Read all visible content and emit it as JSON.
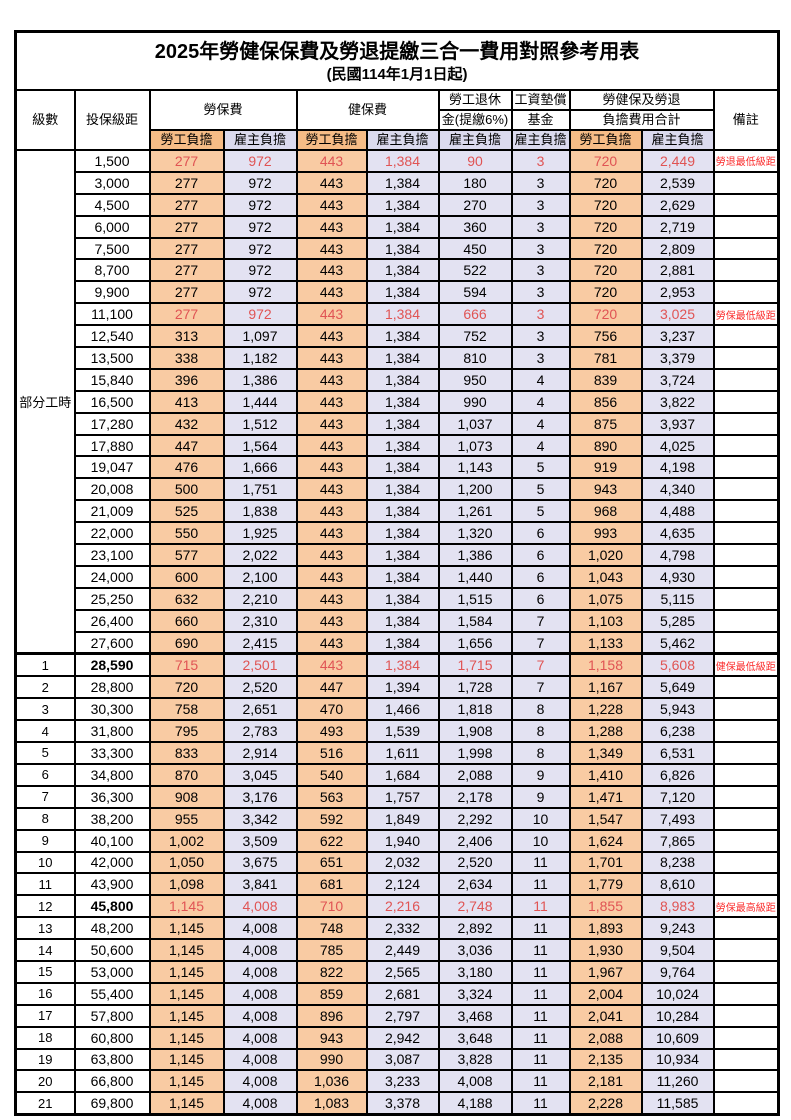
{
  "title": "2025年勞健保保費及勞退提繳三合一費用對照參考用表",
  "subtitle": "(民國114年1月1日起)",
  "colors": {
    "employee_bg": "#F9CBA3",
    "employer_bg": "#E3E2F2",
    "employee_header_bg": "#F6BC86",
    "employer_header_bg": "#DBDAEE",
    "highlight_value_red": "#E05454",
    "remark_red": "#FB2B2B",
    "grid": "#000000"
  },
  "header": {
    "level": "級數",
    "bracket": "投保級距",
    "labor_insurance": "勞保費",
    "health_insurance": "健保費",
    "pension_line1": "勞工退休",
    "pension_line2": "金(提繳6%)",
    "wage_fund_line1": "工資墊償",
    "wage_fund_line2": "基金",
    "total_line1": "勞健保及勞退",
    "total_line2": "負擔費用合計",
    "remark": "備註",
    "employee_share": "勞工負擔",
    "employer_share": "雇主負擔"
  },
  "part_time_label": "部分工時",
  "part_time_rowspan": 23,
  "rows": [
    {
      "level": "",
      "bracket": "1,500",
      "cells": [
        "277",
        "972",
        "443",
        "1,384",
        "90",
        "3",
        "720",
        "2,449"
      ],
      "remark": "勞退最低級距",
      "red": true,
      "thickTop": false
    },
    {
      "level": null,
      "bracket": "3,000",
      "cells": [
        "277",
        "972",
        "443",
        "1,384",
        "180",
        "3",
        "720",
        "2,539"
      ],
      "remark": "",
      "red": false,
      "thickTop": false
    },
    {
      "level": null,
      "bracket": "4,500",
      "cells": [
        "277",
        "972",
        "443",
        "1,384",
        "270",
        "3",
        "720",
        "2,629"
      ],
      "remark": "",
      "red": false,
      "thickTop": false
    },
    {
      "level": null,
      "bracket": "6,000",
      "cells": [
        "277",
        "972",
        "443",
        "1,384",
        "360",
        "3",
        "720",
        "2,719"
      ],
      "remark": "",
      "red": false,
      "thickTop": false
    },
    {
      "level": null,
      "bracket": "7,500",
      "cells": [
        "277",
        "972",
        "443",
        "1,384",
        "450",
        "3",
        "720",
        "2,809"
      ],
      "remark": "",
      "red": false,
      "thickTop": false
    },
    {
      "level": null,
      "bracket": "8,700",
      "cells": [
        "277",
        "972",
        "443",
        "1,384",
        "522",
        "3",
        "720",
        "2,881"
      ],
      "remark": "",
      "red": false,
      "thickTop": false
    },
    {
      "level": null,
      "bracket": "9,900",
      "cells": [
        "277",
        "972",
        "443",
        "1,384",
        "594",
        "3",
        "720",
        "2,953"
      ],
      "remark": "",
      "red": false,
      "thickTop": false
    },
    {
      "level": null,
      "bracket": "11,100",
      "cells": [
        "277",
        "972",
        "443",
        "1,384",
        "666",
        "3",
        "720",
        "3,025"
      ],
      "remark": "勞保最低級距",
      "red": true,
      "thickTop": false
    },
    {
      "level": null,
      "bracket": "12,540",
      "cells": [
        "313",
        "1,097",
        "443",
        "1,384",
        "752",
        "3",
        "756",
        "3,237"
      ],
      "remark": "",
      "red": false,
      "thickTop": false
    },
    {
      "level": null,
      "bracket": "13,500",
      "cells": [
        "338",
        "1,182",
        "443",
        "1,384",
        "810",
        "3",
        "781",
        "3,379"
      ],
      "remark": "",
      "red": false,
      "thickTop": false
    },
    {
      "level": null,
      "bracket": "15,840",
      "cells": [
        "396",
        "1,386",
        "443",
        "1,384",
        "950",
        "4",
        "839",
        "3,724"
      ],
      "remark": "",
      "red": false,
      "thickTop": false
    },
    {
      "level": null,
      "bracket": "16,500",
      "cells": [
        "413",
        "1,444",
        "443",
        "1,384",
        "990",
        "4",
        "856",
        "3,822"
      ],
      "remark": "",
      "red": false,
      "thickTop": false
    },
    {
      "level": null,
      "bracket": "17,280",
      "cells": [
        "432",
        "1,512",
        "443",
        "1,384",
        "1,037",
        "4",
        "875",
        "3,937"
      ],
      "remark": "",
      "red": false,
      "thickTop": false
    },
    {
      "level": null,
      "bracket": "17,880",
      "cells": [
        "447",
        "1,564",
        "443",
        "1,384",
        "1,073",
        "4",
        "890",
        "4,025"
      ],
      "remark": "",
      "red": false,
      "thickTop": false
    },
    {
      "level": null,
      "bracket": "19,047",
      "cells": [
        "476",
        "1,666",
        "443",
        "1,384",
        "1,143",
        "5",
        "919",
        "4,198"
      ],
      "remark": "",
      "red": false,
      "thickTop": false
    },
    {
      "level": null,
      "bracket": "20,008",
      "cells": [
        "500",
        "1,751",
        "443",
        "1,384",
        "1,200",
        "5",
        "943",
        "4,340"
      ],
      "remark": "",
      "red": false,
      "thickTop": false
    },
    {
      "level": null,
      "bracket": "21,009",
      "cells": [
        "525",
        "1,838",
        "443",
        "1,384",
        "1,261",
        "5",
        "968",
        "4,488"
      ],
      "remark": "",
      "red": false,
      "thickTop": false
    },
    {
      "level": null,
      "bracket": "22,000",
      "cells": [
        "550",
        "1,925",
        "443",
        "1,384",
        "1,320",
        "6",
        "993",
        "4,635"
      ],
      "remark": "",
      "red": false,
      "thickTop": false
    },
    {
      "level": null,
      "bracket": "23,100",
      "cells": [
        "577",
        "2,022",
        "443",
        "1,384",
        "1,386",
        "6",
        "1,020",
        "4,798"
      ],
      "remark": "",
      "red": false,
      "thickTop": false
    },
    {
      "level": null,
      "bracket": "24,000",
      "cells": [
        "600",
        "2,100",
        "443",
        "1,384",
        "1,440",
        "6",
        "1,043",
        "4,930"
      ],
      "remark": "",
      "red": false,
      "thickTop": false
    },
    {
      "level": null,
      "bracket": "25,250",
      "cells": [
        "632",
        "2,210",
        "443",
        "1,384",
        "1,515",
        "6",
        "1,075",
        "5,115"
      ],
      "remark": "",
      "red": false,
      "thickTop": false
    },
    {
      "level": null,
      "bracket": "26,400",
      "cells": [
        "660",
        "2,310",
        "443",
        "1,384",
        "1,584",
        "7",
        "1,103",
        "5,285"
      ],
      "remark": "",
      "red": false,
      "thickTop": false
    },
    {
      "level": null,
      "bracket": "27,600",
      "cells": [
        "690",
        "2,415",
        "443",
        "1,384",
        "1,656",
        "7",
        "1,133",
        "5,462"
      ],
      "remark": "",
      "red": false,
      "thickTop": false
    },
    {
      "level": "1",
      "bracket": "28,590",
      "cells": [
        "715",
        "2,501",
        "443",
        "1,384",
        "1,715",
        "7",
        "1,158",
        "5,608"
      ],
      "remark": "健保最低級距",
      "red": true,
      "thickTop": true
    },
    {
      "level": "2",
      "bracket": "28,800",
      "cells": [
        "720",
        "2,520",
        "447",
        "1,394",
        "1,728",
        "7",
        "1,167",
        "5,649"
      ],
      "remark": "",
      "red": false,
      "thickTop": false
    },
    {
      "level": "3",
      "bracket": "30,300",
      "cells": [
        "758",
        "2,651",
        "470",
        "1,466",
        "1,818",
        "8",
        "1,228",
        "5,943"
      ],
      "remark": "",
      "red": false,
      "thickTop": false
    },
    {
      "level": "4",
      "bracket": "31,800",
      "cells": [
        "795",
        "2,783",
        "493",
        "1,539",
        "1,908",
        "8",
        "1,288",
        "6,238"
      ],
      "remark": "",
      "red": false,
      "thickTop": false
    },
    {
      "level": "5",
      "bracket": "33,300",
      "cells": [
        "833",
        "2,914",
        "516",
        "1,611",
        "1,998",
        "8",
        "1,349",
        "6,531"
      ],
      "remark": "",
      "red": false,
      "thickTop": false
    },
    {
      "level": "6",
      "bracket": "34,800",
      "cells": [
        "870",
        "3,045",
        "540",
        "1,684",
        "2,088",
        "9",
        "1,410",
        "6,826"
      ],
      "remark": "",
      "red": false,
      "thickTop": false
    },
    {
      "level": "7",
      "bracket": "36,300",
      "cells": [
        "908",
        "3,176",
        "563",
        "1,757",
        "2,178",
        "9",
        "1,471",
        "7,120"
      ],
      "remark": "",
      "red": false,
      "thickTop": false
    },
    {
      "level": "8",
      "bracket": "38,200",
      "cells": [
        "955",
        "3,342",
        "592",
        "1,849",
        "2,292",
        "10",
        "1,547",
        "7,493"
      ],
      "remark": "",
      "red": false,
      "thickTop": false
    },
    {
      "level": "9",
      "bracket": "40,100",
      "cells": [
        "1,002",
        "3,509",
        "622",
        "1,940",
        "2,406",
        "10",
        "1,624",
        "7,865"
      ],
      "remark": "",
      "red": false,
      "thickTop": false
    },
    {
      "level": "10",
      "bracket": "42,000",
      "cells": [
        "1,050",
        "3,675",
        "651",
        "2,032",
        "2,520",
        "11",
        "1,701",
        "8,238"
      ],
      "remark": "",
      "red": false,
      "thickTop": false
    },
    {
      "level": "11",
      "bracket": "43,900",
      "cells": [
        "1,098",
        "3,841",
        "681",
        "2,124",
        "2,634",
        "11",
        "1,779",
        "8,610"
      ],
      "remark": "",
      "red": false,
      "thickTop": false
    },
    {
      "level": "12",
      "bracket": "45,800",
      "cells": [
        "1,145",
        "4,008",
        "710",
        "2,216",
        "2,748",
        "11",
        "1,855",
        "8,983"
      ],
      "remark": "勞保最高級距",
      "red": true,
      "thickTop": false
    },
    {
      "level": "13",
      "bracket": "48,200",
      "cells": [
        "1,145",
        "4,008",
        "748",
        "2,332",
        "2,892",
        "11",
        "1,893",
        "9,243"
      ],
      "remark": "",
      "red": false,
      "thickTop": false
    },
    {
      "level": "14",
      "bracket": "50,600",
      "cells": [
        "1,145",
        "4,008",
        "785",
        "2,449",
        "3,036",
        "11",
        "1,930",
        "9,504"
      ],
      "remark": "",
      "red": false,
      "thickTop": false
    },
    {
      "level": "15",
      "bracket": "53,000",
      "cells": [
        "1,145",
        "4,008",
        "822",
        "2,565",
        "3,180",
        "11",
        "1,967",
        "9,764"
      ],
      "remark": "",
      "red": false,
      "thickTop": false
    },
    {
      "level": "16",
      "bracket": "55,400",
      "cells": [
        "1,145",
        "4,008",
        "859",
        "2,681",
        "3,324",
        "11",
        "2,004",
        "10,024"
      ],
      "remark": "",
      "red": false,
      "thickTop": false
    },
    {
      "level": "17",
      "bracket": "57,800",
      "cells": [
        "1,145",
        "4,008",
        "896",
        "2,797",
        "3,468",
        "11",
        "2,041",
        "10,284"
      ],
      "remark": "",
      "red": false,
      "thickTop": false
    },
    {
      "level": "18",
      "bracket": "60,800",
      "cells": [
        "1,145",
        "4,008",
        "943",
        "2,942",
        "3,648",
        "11",
        "2,088",
        "10,609"
      ],
      "remark": "",
      "red": false,
      "thickTop": false
    },
    {
      "level": "19",
      "bracket": "63,800",
      "cells": [
        "1,145",
        "4,008",
        "990",
        "3,087",
        "3,828",
        "11",
        "2,135",
        "10,934"
      ],
      "remark": "",
      "red": false,
      "thickTop": false
    },
    {
      "level": "20",
      "bracket": "66,800",
      "cells": [
        "1,145",
        "4,008",
        "1,036",
        "3,233",
        "4,008",
        "11",
        "2,181",
        "11,260"
      ],
      "remark": "",
      "red": false,
      "thickTop": false
    },
    {
      "level": "21",
      "bracket": "69,800",
      "cells": [
        "1,145",
        "4,008",
        "1,083",
        "3,378",
        "4,188",
        "11",
        "2,228",
        "11,585"
      ],
      "remark": "",
      "red": false,
      "thickTop": false
    }
  ]
}
